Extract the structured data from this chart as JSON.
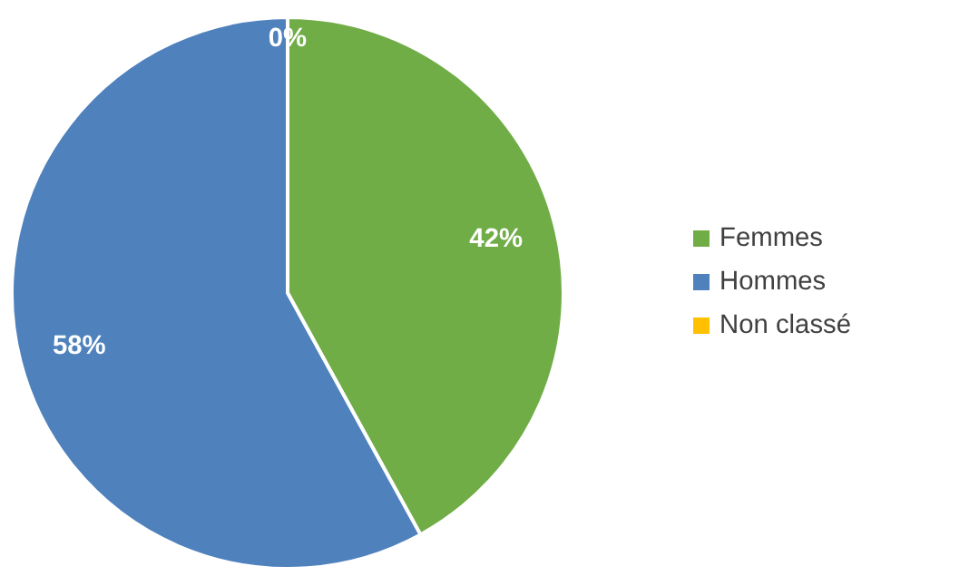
{
  "chart_data": {
    "type": "pie",
    "categories": [
      "Femmes",
      "Hommes",
      "Non classé"
    ],
    "values": [
      42,
      58,
      0
    ],
    "colors": [
      "#70ad47",
      "#4f81bd",
      "#ffc000"
    ],
    "value_labels": [
      "42%",
      "58%",
      "0%"
    ],
    "legend": "right"
  }
}
